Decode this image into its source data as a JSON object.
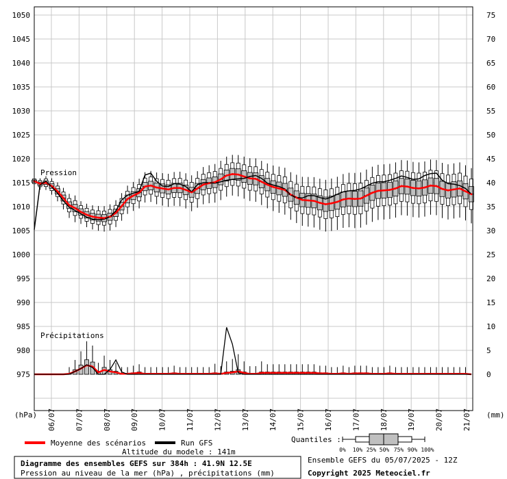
{
  "chart_data": {
    "type": "line",
    "title": "Diagramme des ensembles GEFS sur 384h : 41.9N 12.5E",
    "subtitle": "Pression au niveau de la mer (hPa) , précipitations (mm)",
    "left_axis": {
      "unit_label": "(hPa)",
      "ticks": [
        "1050",
        "1045",
        "1040",
        "1035",
        "1030",
        "1025",
        "1020",
        "1015",
        "1010",
        "1005",
        "1000",
        "995",
        "990",
        "985",
        "980",
        "975"
      ]
    },
    "right_axis": {
      "unit_label": "(mm)",
      "ticks": [
        "75",
        "70",
        "65",
        "60",
        "55",
        "50",
        "45",
        "40",
        "35",
        "30",
        "25",
        "20",
        "15",
        "10",
        "5",
        "0"
      ]
    },
    "x_axis": {
      "ticks": [
        "06/07",
        "07/07",
        "08/07",
        "09/07",
        "10/07",
        "11/07",
        "12/07",
        "13/07",
        "14/07",
        "15/07",
        "16/07",
        "17/07",
        "18/07",
        "19/07",
        "20/07",
        "21/07"
      ]
    },
    "panel_labels": {
      "pressure": "Pression",
      "precip": "Précipitations"
    },
    "grid": true,
    "series": [
      {
        "name": "Moyenne des scénarios",
        "color": "#ff0000",
        "panel": "pressure",
        "values": [
          1015.3,
          1014.8,
          1015.0,
          1014.3,
          1013.2,
          1011.8,
          1010.3,
          1009.7,
          1008.9,
          1008.3,
          1007.9,
          1007.7,
          1007.6,
          1007.9,
          1008.7,
          1010.1,
          1011.6,
          1012.3,
          1012.9,
          1014.2,
          1014.4,
          1014.0,
          1013.8,
          1013.6,
          1013.9,
          1013.9,
          1013.5,
          1013.0,
          1013.8,
          1014.6,
          1014.9,
          1015.1,
          1015.7,
          1016.5,
          1016.8,
          1016.7,
          1016.3,
          1015.9,
          1015.8,
          1015.2,
          1014.6,
          1014.1,
          1013.8,
          1013.5,
          1012.5,
          1011.9,
          1011.4,
          1011.3,
          1011.2,
          1010.8,
          1010.5,
          1010.7,
          1011.0,
          1011.5,
          1011.7,
          1011.6,
          1011.7,
          1012.3,
          1012.9,
          1013.3,
          1013.4,
          1013.5,
          1013.8,
          1014.3,
          1014.2,
          1013.9,
          1013.8,
          1014.0,
          1014.4,
          1014.3,
          1013.7,
          1013.4,
          1013.6,
          1013.8,
          1013.2,
          1012.6
        ]
      },
      {
        "name": "Run GFS",
        "color": "#000000",
        "panel": "pressure",
        "values": [
          1005.2,
          1014.6,
          1015.3,
          1014.1,
          1012.8,
          1011.2,
          1009.9,
          1009.2,
          1008.5,
          1007.8,
          1007.4,
          1007.3,
          1007.4,
          1007.9,
          1009.1,
          1011.4,
          1012.4,
          1012.8,
          1013.2,
          1016.6,
          1017.0,
          1015.3,
          1014.3,
          1014.2,
          1014.8,
          1014.7,
          1014.2,
          1013.1,
          1014.6,
          1015.0,
          1015.0,
          1014.9,
          1015.2,
          1015.5,
          1015.7,
          1015.8,
          1015.9,
          1016.3,
          1016.5,
          1015.9,
          1014.9,
          1014.5,
          1014.2,
          1013.7,
          1012.4,
          1011.9,
          1011.8,
          1012.3,
          1012.3,
          1011.9,
          1011.6,
          1012.0,
          1012.6,
          1013.1,
          1013.3,
          1013.4,
          1013.7,
          1014.3,
          1014.9,
          1015.2,
          1015.2,
          1015.5,
          1015.9,
          1016.4,
          1016.1,
          1015.7,
          1015.8,
          1016.5,
          1016.9,
          1017.0,
          1015.5,
          1014.8,
          1014.7,
          1014.4,
          1013.8,
          1012.6
        ]
      },
      {
        "name": "Moyenne des scénarios (précipitations)",
        "color": "#ff0000",
        "panel": "precip",
        "values": [
          0,
          0,
          0,
          0,
          0,
          0,
          0.1,
          0.6,
          1.2,
          1.9,
          1.6,
          0.4,
          0.9,
          0.6,
          0.4,
          0.1,
          0.1,
          0.2,
          0.3,
          0.1,
          0.1,
          0.1,
          0.1,
          0.1,
          0.2,
          0.1,
          0.1,
          0.1,
          0.1,
          0.1,
          0.1,
          0.2,
          0.1,
          0.3,
          0.4,
          0.6,
          0.3,
          0.1,
          0.1,
          0.3,
          0.3,
          0.3,
          0.3,
          0.3,
          0.3,
          0.3,
          0.3,
          0.3,
          0.3,
          0.2,
          0.2,
          0.1,
          0.1,
          0.2,
          0.1,
          0.2,
          0.2,
          0.2,
          0.1,
          0.1,
          0.1,
          0.2,
          0.1,
          0.1,
          0.1,
          0.1,
          0.1,
          0.1,
          0.1,
          0.1,
          0.1,
          0.1,
          0.1,
          0.1,
          0.1,
          0
        ]
      },
      {
        "name": "Run GFS (précipitations)",
        "color": "#000000",
        "panel": "precip",
        "values": [
          0,
          0,
          0,
          0,
          0,
          0,
          0,
          0.6,
          1.2,
          2.0,
          1.4,
          0,
          0,
          1.0,
          3.0,
          0.5,
          0,
          0,
          0,
          0,
          0,
          0,
          0,
          0,
          0,
          0,
          0,
          0,
          0,
          0,
          0,
          0,
          0,
          9.8,
          6.3,
          0.3,
          0,
          0,
          0,
          0,
          0,
          0,
          0,
          0,
          0,
          0,
          0,
          0,
          0,
          0,
          0,
          0,
          0,
          0,
          0,
          0,
          0,
          0,
          0,
          0,
          0,
          0,
          0,
          0,
          0,
          0,
          0,
          0,
          0,
          0,
          0,
          0,
          0,
          0,
          0,
          0
        ]
      }
    ],
    "box_quantiles": [
      "0%",
      "10%",
      "25%",
      "50%",
      "75%",
      "90%",
      "100%"
    ],
    "box_color": "#c0c0c0"
  },
  "legend": {
    "mean_label": "Moyenne des scénarios",
    "run_label": "Run GFS",
    "altitude": "Altitude du modele : 141m",
    "quantiles_label": "Quantiles :"
  },
  "footer": {
    "ensemble": "Ensemble GEFS du 05/07/2025 - 12Z",
    "copyright": "Copyright 2025 Meteociel.fr"
  }
}
